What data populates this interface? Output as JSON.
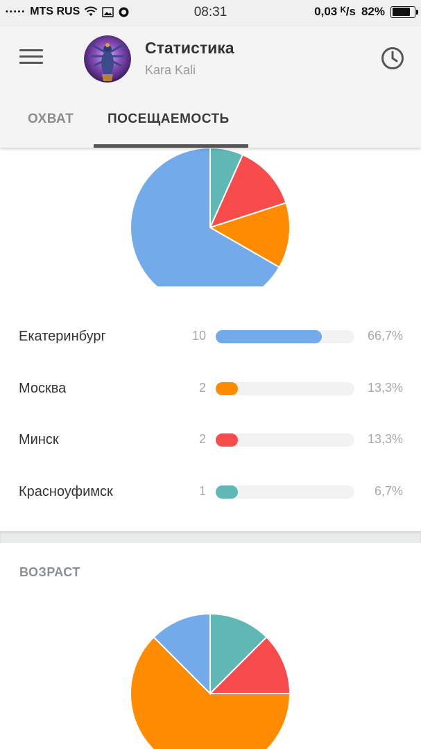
{
  "status_bar": {
    "signal": "•••••",
    "carrier": "MTS RUS",
    "time": "08:31",
    "speed": "0,03 ᴷ/s",
    "battery": "82%"
  },
  "header": {
    "title": "Статистика",
    "subtitle": "Kara Kali"
  },
  "tabs": [
    {
      "label": "ОХВАТ",
      "active": false
    },
    {
      "label": "ПОСЕЩАЕМОСТЬ",
      "active": true
    }
  ],
  "cities": [
    {
      "name": "Екатеринбург",
      "count": "10",
      "percent": "66,7%",
      "fraction": 0.667,
      "color": "#72aaea"
    },
    {
      "name": "Москва",
      "count": "2",
      "percent": "13,3%",
      "fraction": 0.133,
      "color": "#ff8c00"
    },
    {
      "name": "Минск",
      "count": "2",
      "percent": "13,3%",
      "fraction": 0.133,
      "color": "#f84b4b"
    },
    {
      "name": "Красноуфимск",
      "count": "1",
      "percent": "6,7%",
      "fraction": 0.067,
      "color": "#60b8b5"
    }
  ],
  "age_section": {
    "title": "ВОЗРАСТ"
  },
  "age_pie_slices": [
    {
      "fraction": 0.125,
      "color": "#60b8b5"
    },
    {
      "fraction": 0.125,
      "color": "#f84b4b"
    },
    {
      "fraction": 0.625,
      "color": "#ff8c00"
    },
    {
      "fraction": 0.125,
      "color": "#72aaea"
    }
  ]
}
